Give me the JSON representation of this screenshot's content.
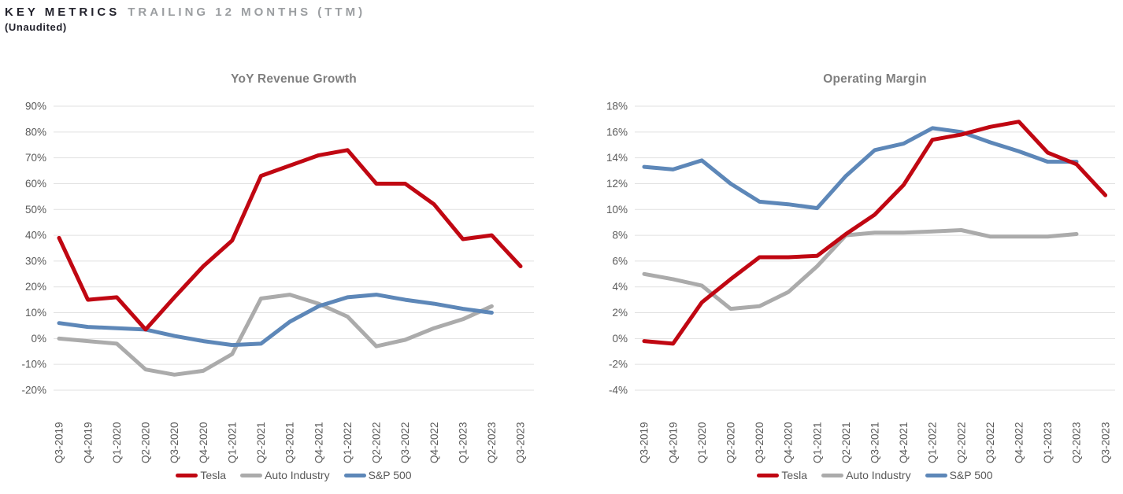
{
  "header": {
    "title_primary": "KEY METRICS",
    "title_secondary": "TRAILING 12 MONTHS (TTM)",
    "subtitle": "(Unaudited)"
  },
  "colors": {
    "tesla": "#c00712",
    "auto_industry": "#ababab",
    "sp500": "#5d87b8",
    "grid": "#e1e1e1",
    "tick_text": "#5a5a5a",
    "title_text": "#7f7f7f"
  },
  "chart_data": [
    {
      "type": "line",
      "title": "YoY Revenue Growth",
      "ylim": [
        -20,
        90
      ],
      "ytick_step": 10,
      "ytick_format": "percent",
      "grid": true,
      "legend_position": "bottom",
      "categories": [
        "Q3-2019",
        "Q4-2019",
        "Q1-2020",
        "Q2-2020",
        "Q3-2020",
        "Q4-2020",
        "Q1-2021",
        "Q2-2021",
        "Q3-2021",
        "Q4-2021",
        "Q1-2022",
        "Q2-2022",
        "Q3-2022",
        "Q4-2022",
        "Q1-2023",
        "Q2-2023",
        "Q3-2023"
      ],
      "series": [
        {
          "name": "Tesla",
          "color": "#c00712",
          "values": [
            39,
            15,
            16,
            3.5,
            16,
            28,
            38,
            63,
            67,
            71,
            73,
            60,
            60,
            52,
            38.5,
            40,
            28
          ]
        },
        {
          "name": "Auto Industry",
          "color": "#ababab",
          "values": [
            0,
            -1,
            -2,
            -12,
            -14,
            -12.5,
            -6,
            15.5,
            17,
            13.5,
            8.5,
            -3,
            -0.5,
            4,
            7.5,
            12.5,
            null
          ]
        },
        {
          "name": "S&P 500",
          "color": "#5d87b8",
          "values": [
            6,
            4.5,
            4,
            3.5,
            1,
            -1,
            -2.5,
            -2,
            6.5,
            12.5,
            16,
            17,
            15,
            13.5,
            11.5,
            10,
            null
          ]
        }
      ]
    },
    {
      "type": "line",
      "title": "Operating Margin",
      "ylim": [
        -4,
        18
      ],
      "ytick_step": 2,
      "ytick_format": "percent",
      "grid": true,
      "legend_position": "bottom",
      "categories": [
        "Q3-2019",
        "Q4-2019",
        "Q1-2020",
        "Q2-2020",
        "Q3-2020",
        "Q4-2020",
        "Q1-2021",
        "Q2-2021",
        "Q3-2021",
        "Q4-2021",
        "Q1-2022",
        "Q2-2022",
        "Q3-2022",
        "Q4-2022",
        "Q1-2023",
        "Q2-2023",
        "Q3-2023"
      ],
      "series": [
        {
          "name": "Tesla",
          "color": "#c00712",
          "values": [
            -0.2,
            -0.4,
            2.8,
            4.6,
            6.3,
            6.3,
            6.4,
            8.1,
            9.6,
            11.9,
            15.4,
            15.8,
            16.4,
            16.8,
            14.4,
            13.5,
            11.1
          ]
        },
        {
          "name": "Auto Industry",
          "color": "#ababab",
          "values": [
            5,
            4.6,
            4.1,
            2.3,
            2.5,
            3.6,
            5.6,
            8,
            8.2,
            8.2,
            8.3,
            8.4,
            7.9,
            7.9,
            7.9,
            8.1,
            null
          ]
        },
        {
          "name": "S&P 500",
          "color": "#5d87b8",
          "values": [
            13.3,
            13.1,
            13.8,
            12,
            10.6,
            10.4,
            10.1,
            12.6,
            14.6,
            15.1,
            16.3,
            16,
            15.2,
            14.5,
            13.7,
            13.7,
            null
          ]
        }
      ]
    }
  ]
}
